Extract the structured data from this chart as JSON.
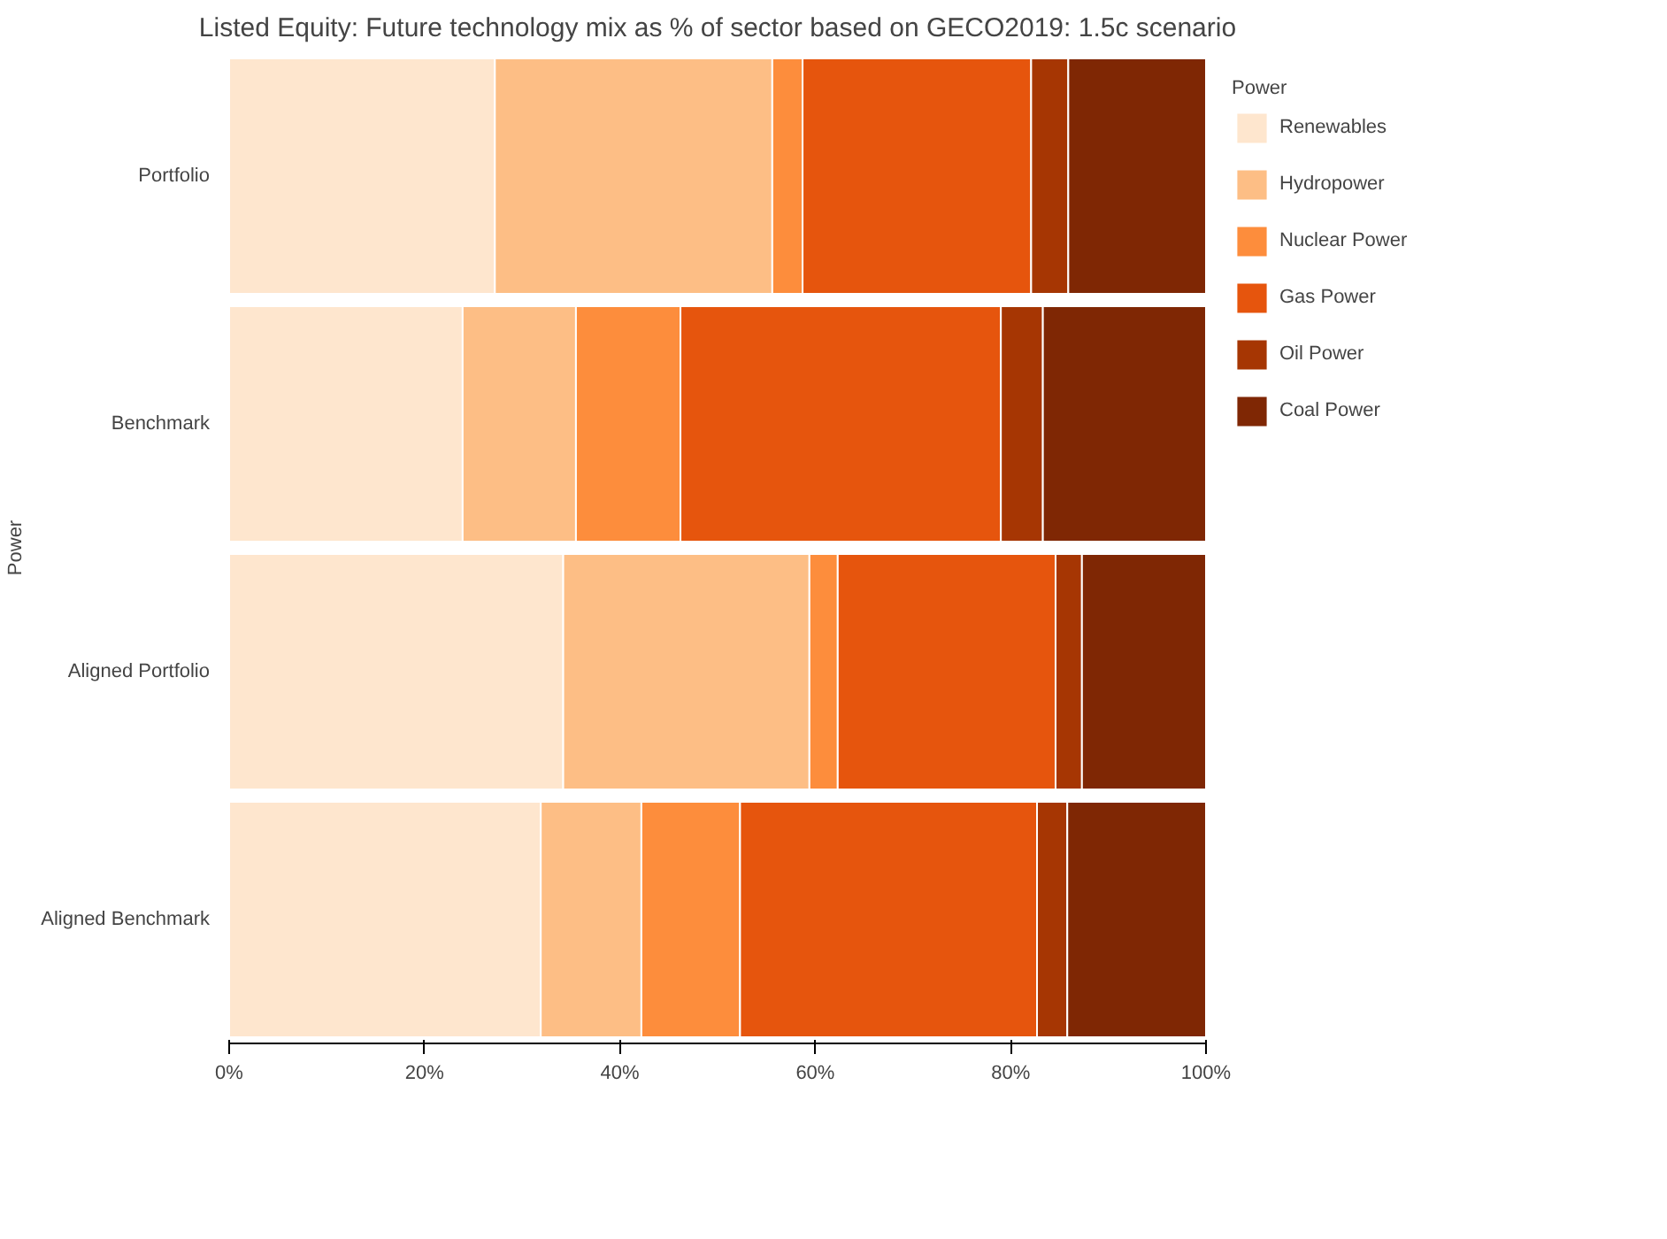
{
  "chart_data": {
    "type": "bar",
    "orientation": "horizontal",
    "stacked": true,
    "title": "Listed Equity: Future technology mix as % of sector based on GECO2019: 1.5c scenario",
    "ylabel": "Power",
    "legend_title": "Power",
    "legend": "right",
    "grid": false,
    "categories": [
      "Portfolio",
      "Benchmark",
      "Aligned Portfolio",
      "Aligned Benchmark"
    ],
    "xlim": [
      0,
      100
    ],
    "xticks": [
      {
        "value": 0,
        "label": "0%"
      },
      {
        "value": 20,
        "label": "20%"
      },
      {
        "value": 40,
        "label": "40%"
      },
      {
        "value": 60,
        "label": "60%"
      },
      {
        "value": 80,
        "label": "80%"
      },
      {
        "value": 100,
        "label": "100%"
      }
    ],
    "series": [
      {
        "name": "Renewables",
        "color": "#fee6ce",
        "values": [
          27.2,
          23.9,
          34.2,
          31.9
        ]
      },
      {
        "name": "Hydropower",
        "color": "#fdbe85",
        "values": [
          28.4,
          11.6,
          25.2,
          10.3
        ]
      },
      {
        "name": "Nuclear Power",
        "color": "#fd8d3c",
        "values": [
          3.1,
          10.7,
          2.9,
          10.1
        ]
      },
      {
        "name": "Gas Power",
        "color": "#e6550d",
        "values": [
          23.4,
          32.8,
          22.3,
          30.4
        ]
      },
      {
        "name": "Oil Power",
        "color": "#a63603",
        "values": [
          3.8,
          4.3,
          2.7,
          3.1
        ]
      },
      {
        "name": "Coal Power",
        "color": "#7f2704",
        "values": [
          14.1,
          16.7,
          12.7,
          14.2
        ]
      }
    ]
  }
}
